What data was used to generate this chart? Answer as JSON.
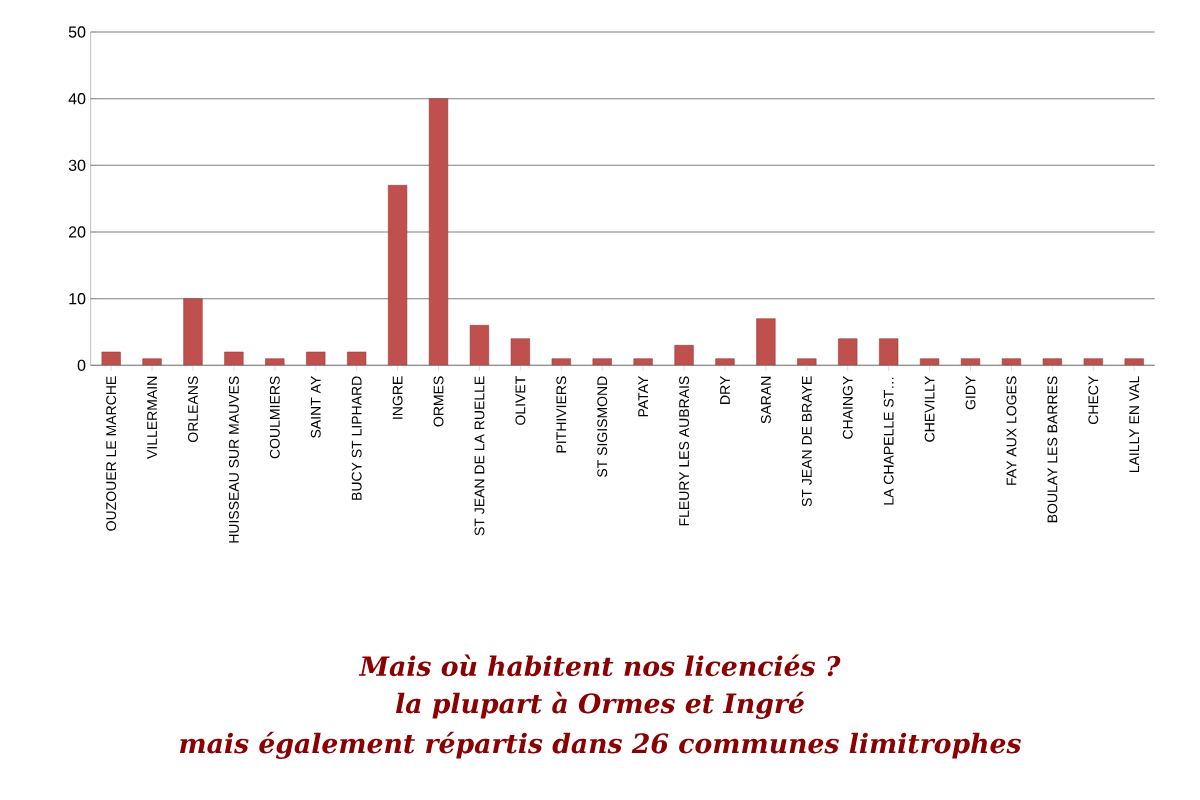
{
  "chart_data": {
    "type": "bar",
    "title": "Mais où habitent nos licenciés ?",
    "subtitle": "la plupart à Ormes et Ingré",
    "annotations": [
      "mais également répartis dans 26 communes limitrophes"
    ],
    "categories": [
      "OUZOUER LE MARCHE",
      "VILLERMAIN",
      "ORLEANS",
      "HUISSEAU SUR MAUVES",
      "COULMIERS",
      "SAINT AY",
      "BUCY ST LIPHARD",
      "INGRE",
      "ORMES",
      "ST JEAN DE LA RUELLE",
      "OLIVET",
      "PITHIVIERS",
      "ST SIGISMOND",
      "PATAY",
      "FLEURY LES AUBRAIS",
      "DRY",
      "SARAN",
      "ST JEAN DE BRAYE",
      "CHAINGY",
      "LA CHAPELLE ST…",
      "CHEVILLY",
      "GIDY",
      "FAY AUX LOGES",
      "BOULAY LES BARRES",
      "CHECY",
      "LAILLY EN VAL"
    ],
    "values": [
      2,
      1,
      10,
      2,
      1,
      2,
      2,
      27,
      40,
      6,
      4,
      1,
      1,
      1,
      3,
      1,
      7,
      1,
      4,
      4,
      1,
      1,
      1,
      1,
      1,
      1
    ],
    "color": "#c0504d",
    "ylim": [
      0,
      50
    ],
    "yticks": [
      0,
      10,
      20,
      30,
      40,
      50
    ],
    "grid": "y"
  }
}
